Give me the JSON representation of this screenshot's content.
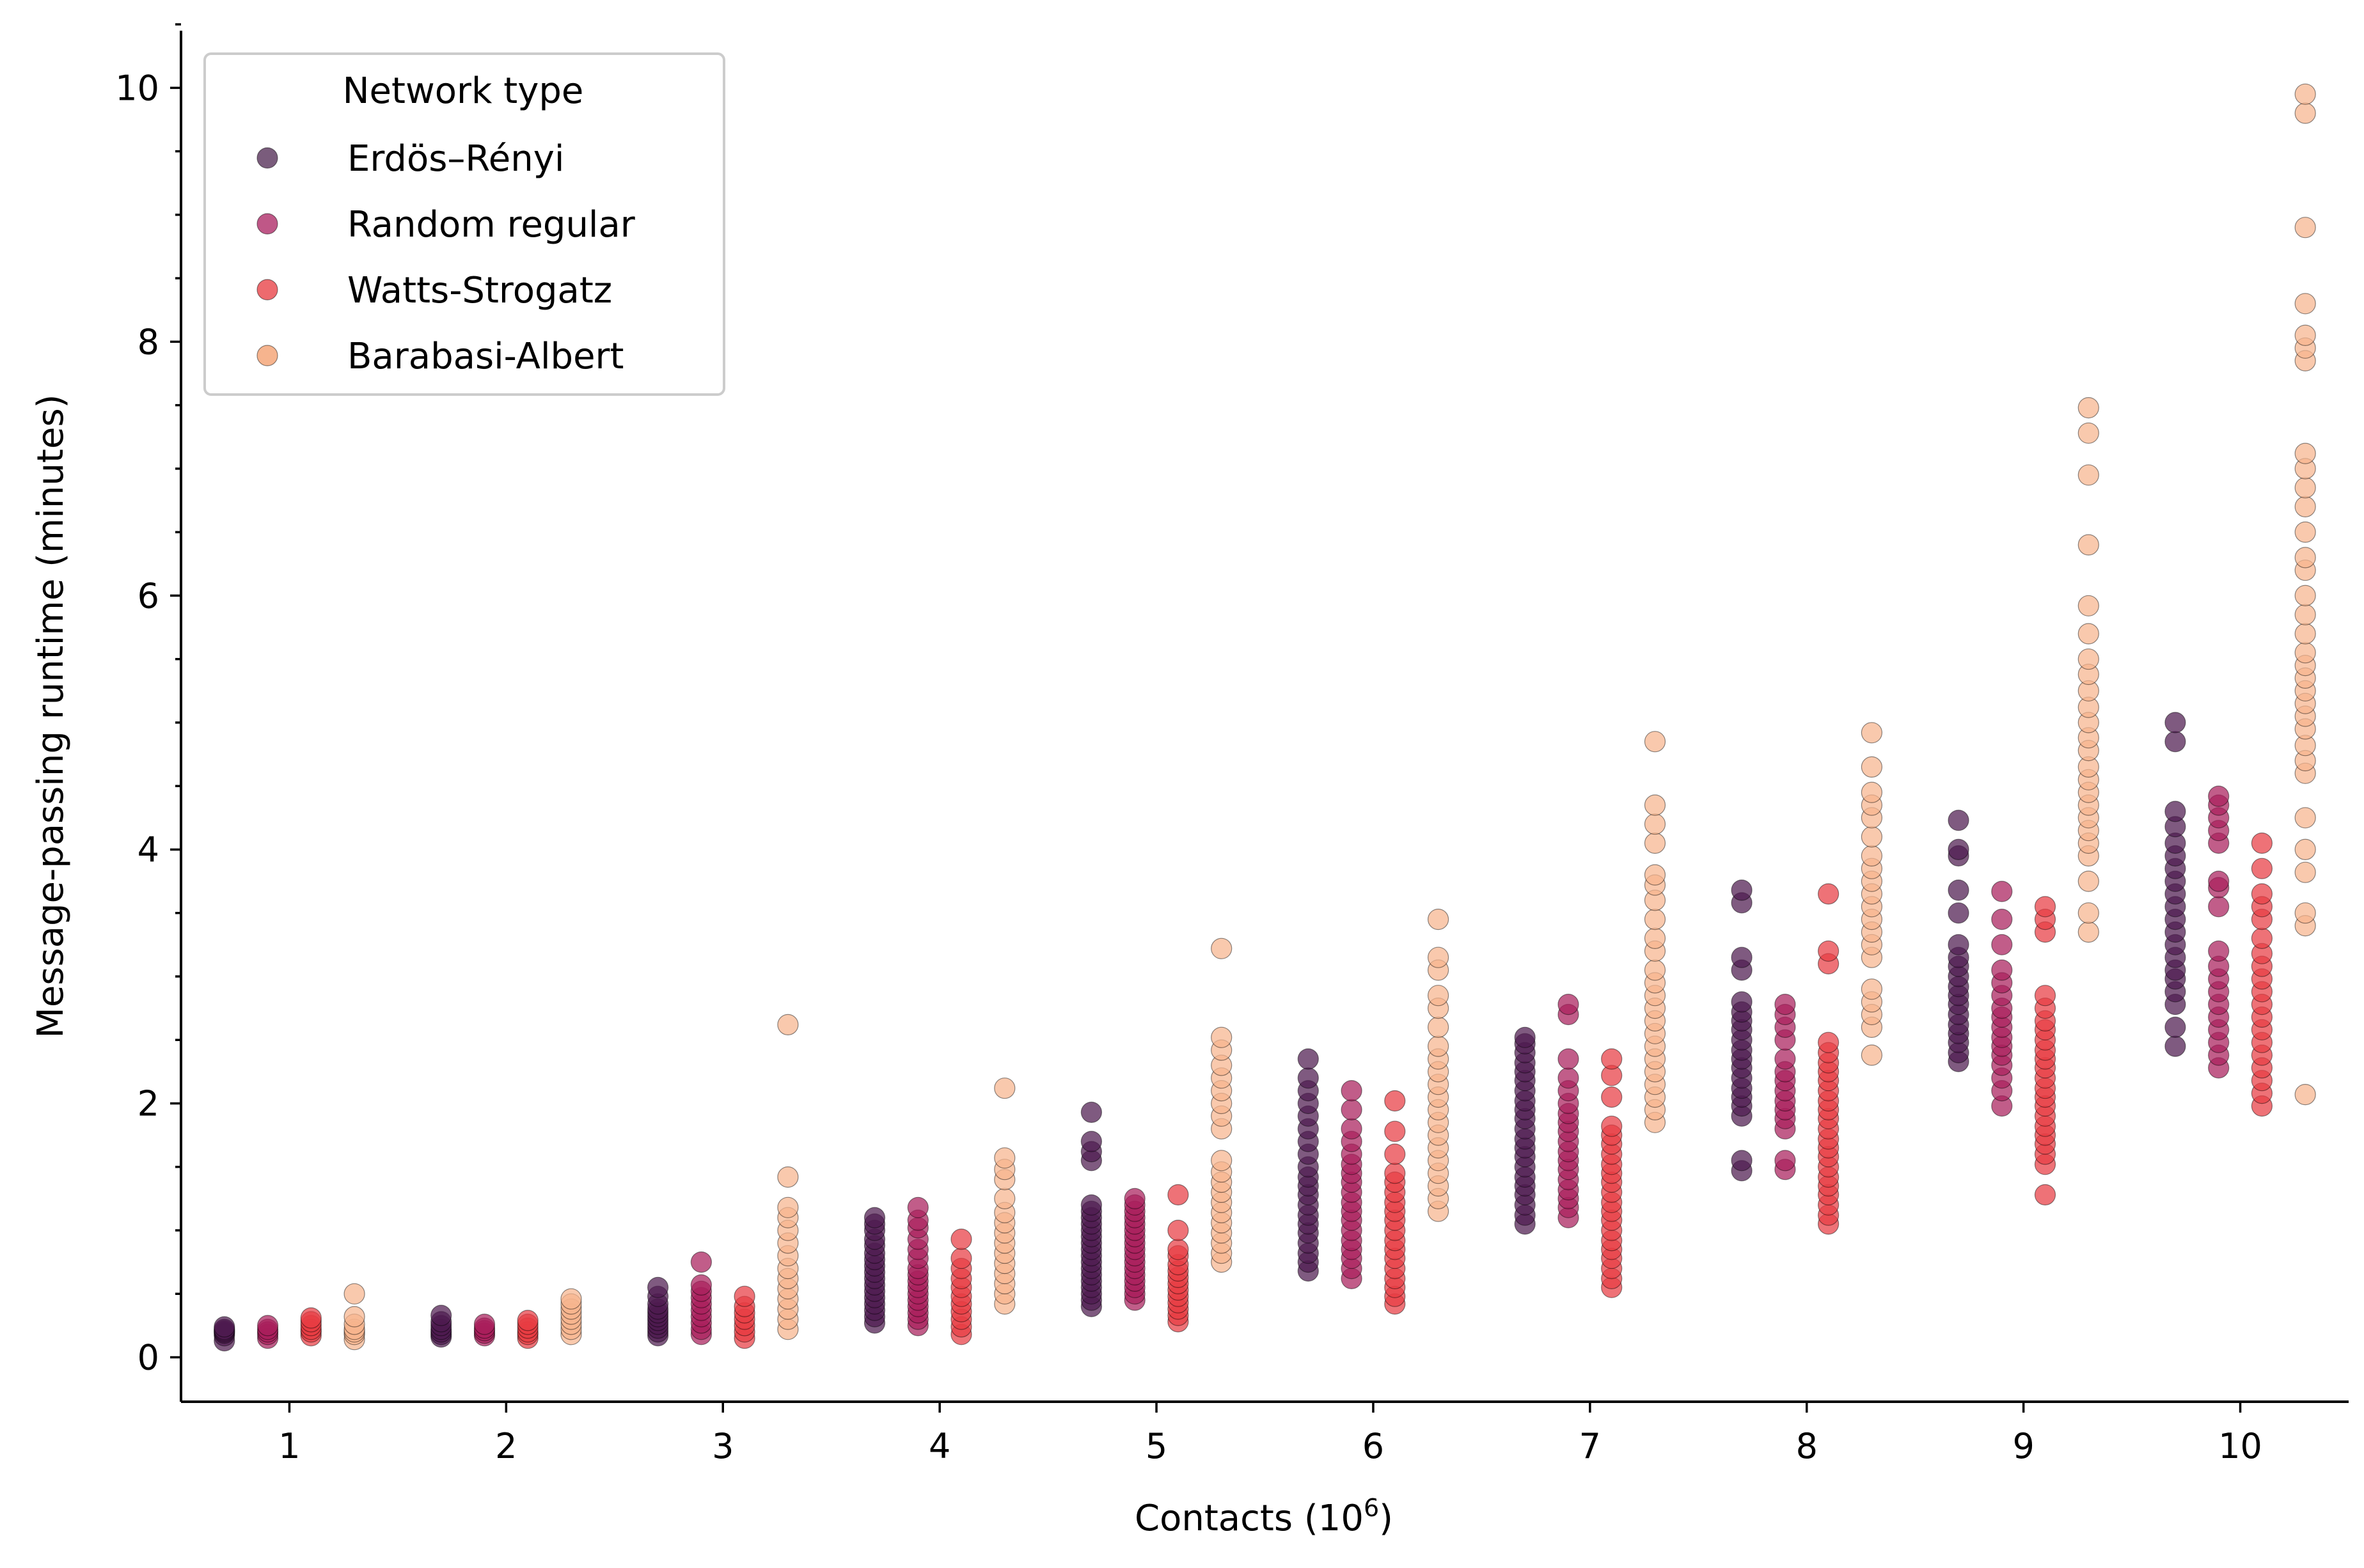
{
  "chart_data": {
    "type": "scatter",
    "xlabel": "Contacts (10",
    "xlabel_sup": "6",
    "xlabel_close": ")",
    "ylabel": "Message-passing runtime (minutes)",
    "xlim": [
      0.5,
      10.5
    ],
    "ylim": [
      -0.35,
      10.45
    ],
    "x_ticks": [
      1,
      2,
      3,
      4,
      5,
      6,
      7,
      8,
      9,
      10
    ],
    "x_tick_labels": [
      "1",
      "2",
      "3",
      "4",
      "5",
      "6",
      "7",
      "8",
      "9",
      "10"
    ],
    "y_ticks": [
      0,
      2,
      4,
      6,
      8,
      10
    ],
    "y_tick_labels": [
      "0",
      "2",
      "4",
      "6",
      "8",
      "10"
    ],
    "y_minor_ticks": [
      0.5,
      1,
      1.5,
      2.5,
      3,
      3.5,
      4.5,
      5,
      5.5,
      6.5,
      7,
      7.5,
      8.5,
      9,
      9.5,
      10.5
    ],
    "grid": false,
    "legend": {
      "title": "Network type",
      "placement": "top-left"
    },
    "series": [
      {
        "name": "Erdös–Rényi",
        "color": "#4d1a4f",
        "legend_color": "#7a5c7c",
        "x_offset": -0.3,
        "points": [
          [
            1,
            [
              0.13,
              0.17,
              0.19,
              0.2,
              0.21,
              0.22,
              0.24
            ]
          ],
          [
            2,
            [
              0.16,
              0.18,
              0.2,
              0.22,
              0.25,
              0.28,
              0.33
            ]
          ],
          [
            3,
            [
              0.17,
              0.2,
              0.23,
              0.26,
              0.29,
              0.32,
              0.35,
              0.38,
              0.42,
              0.48,
              0.55
            ]
          ],
          [
            4,
            [
              0.27,
              0.32,
              0.37,
              0.42,
              0.47,
              0.52,
              0.57,
              0.62,
              0.67,
              0.72,
              0.77,
              0.82,
              0.88,
              0.93,
              1.0,
              1.05,
              1.1
            ]
          ],
          [
            5,
            [
              0.4,
              0.45,
              0.5,
              0.55,
              0.6,
              0.65,
              0.7,
              0.75,
              0.8,
              0.85,
              0.9,
              0.95,
              1.0,
              1.05,
              1.1,
              1.15,
              1.2,
              1.55,
              1.62,
              1.7,
              1.93
            ]
          ],
          [
            6,
            [
              0.68,
              0.75,
              0.82,
              0.9,
              0.98,
              1.05,
              1.12,
              1.2,
              1.28,
              1.35,
              1.42,
              1.5,
              1.6,
              1.7,
              1.8,
              1.9,
              2.0,
              2.1,
              2.2,
              2.35
            ]
          ],
          [
            7,
            [
              1.05,
              1.12,
              1.2,
              1.28,
              1.35,
              1.42,
              1.5,
              1.58,
              1.65,
              1.72,
              1.8,
              1.88,
              1.95,
              2.02,
              2.1,
              2.18,
              2.25,
              2.32,
              2.4,
              2.47,
              2.52
            ]
          ],
          [
            8,
            [
              1.47,
              1.55,
              1.9,
              1.98,
              2.05,
              2.12,
              2.2,
              2.28,
              2.35,
              2.42,
              2.5,
              2.58,
              2.65,
              2.72,
              2.8,
              3.05,
              3.15,
              3.58,
              3.68
            ]
          ],
          [
            9,
            [
              2.33,
              2.4,
              2.48,
              2.55,
              2.62,
              2.7,
              2.78,
              2.85,
              2.92,
              3.0,
              3.08,
              3.15,
              3.25,
              3.5,
              3.68,
              3.95,
              4.0,
              4.23
            ]
          ],
          [
            10,
            [
              2.45,
              2.6,
              2.78,
              2.88,
              2.98,
              3.05,
              3.15,
              3.25,
              3.35,
              3.45,
              3.55,
              3.65,
              3.75,
              3.85,
              3.95,
              4.05,
              4.18,
              4.3,
              4.85,
              5.0
            ]
          ]
        ]
      },
      {
        "name": "Random regular",
        "color": "#a91e5c",
        "legend_color": "#bf5787",
        "x_offset": -0.1,
        "points": [
          [
            1,
            [
              0.15,
              0.18,
              0.2,
              0.22,
              0.25
            ]
          ],
          [
            2,
            [
              0.17,
              0.19,
              0.21,
              0.23,
              0.26
            ]
          ],
          [
            3,
            [
              0.18,
              0.22,
              0.27,
              0.32,
              0.37,
              0.42,
              0.47,
              0.52,
              0.57,
              0.75
            ]
          ],
          [
            4,
            [
              0.25,
              0.3,
              0.35,
              0.4,
              0.45,
              0.5,
              0.55,
              0.6,
              0.65,
              0.7,
              0.78,
              0.85,
              0.93,
              1.02,
              1.08,
              1.18
            ]
          ],
          [
            5,
            [
              0.45,
              0.5,
              0.55,
              0.6,
              0.65,
              0.7,
              0.75,
              0.8,
              0.85,
              0.9,
              0.95,
              1.0,
              1.05,
              1.1,
              1.15,
              1.2,
              1.25
            ]
          ],
          [
            6,
            [
              0.62,
              0.7,
              0.78,
              0.85,
              0.92,
              1.0,
              1.08,
              1.15,
              1.22,
              1.3,
              1.38,
              1.45,
              1.52,
              1.6,
              1.7,
              1.8,
              1.95,
              2.1
            ]
          ],
          [
            7,
            [
              1.1,
              1.18,
              1.25,
              1.32,
              1.4,
              1.48,
              1.55,
              1.62,
              1.7,
              1.78,
              1.85,
              1.92,
              2.0,
              2.1,
              2.2,
              2.35,
              2.7,
              2.78
            ]
          ],
          [
            8,
            [
              1.48,
              1.55,
              1.8,
              1.88,
              1.95,
              2.02,
              2.1,
              2.18,
              2.25,
              2.35,
              2.5,
              2.6,
              2.7,
              2.78
            ]
          ],
          [
            9,
            [
              1.98,
              2.1,
              2.2,
              2.3,
              2.38,
              2.45,
              2.52,
              2.6,
              2.68,
              2.75,
              2.85,
              2.95,
              3.05,
              3.25,
              3.45,
              3.67
            ]
          ],
          [
            10,
            [
              2.28,
              2.38,
              2.48,
              2.58,
              2.68,
              2.78,
              2.88,
              2.98,
              3.08,
              3.2,
              3.55,
              3.7,
              3.75,
              4.05,
              4.15,
              4.25,
              4.35,
              4.42
            ]
          ]
        ]
      },
      {
        "name": "Watts-Strogatz",
        "color": "#e83c43",
        "legend_color": "#ed6a6e",
        "x_offset": 0.1,
        "points": [
          [
            1,
            [
              0.17,
              0.2,
              0.22,
              0.25,
              0.28,
              0.31
            ]
          ],
          [
            2,
            [
              0.15,
              0.18,
              0.2,
              0.23,
              0.26,
              0.29
            ]
          ],
          [
            3,
            [
              0.15,
              0.2,
              0.25,
              0.3,
              0.35,
              0.4,
              0.48
            ]
          ],
          [
            4,
            [
              0.18,
              0.24,
              0.3,
              0.36,
              0.42,
              0.48,
              0.55,
              0.62,
              0.7,
              0.78,
              0.93
            ]
          ],
          [
            5,
            [
              0.28,
              0.33,
              0.38,
              0.43,
              0.48,
              0.53,
              0.58,
              0.63,
              0.68,
              0.73,
              0.8,
              0.85,
              1.0,
              1.28
            ]
          ],
          [
            6,
            [
              0.42,
              0.48,
              0.55,
              0.62,
              0.7,
              0.78,
              0.85,
              0.92,
              1.0,
              1.08,
              1.15,
              1.22,
              1.3,
              1.38,
              1.45,
              1.6,
              1.78,
              2.02
            ]
          ],
          [
            7,
            [
              0.55,
              0.62,
              0.7,
              0.78,
              0.85,
              0.92,
              1.0,
              1.08,
              1.15,
              1.22,
              1.3,
              1.38,
              1.45,
              1.52,
              1.6,
              1.68,
              1.75,
              1.82,
              2.05,
              2.22,
              2.35
            ]
          ],
          [
            8,
            [
              1.05,
              1.12,
              1.2,
              1.28,
              1.35,
              1.42,
              1.5,
              1.58,
              1.65,
              1.72,
              1.8,
              1.88,
              1.95,
              2.02,
              2.1,
              2.18,
              2.25,
              2.32,
              2.4,
              2.48,
              3.1,
              3.2,
              3.65
            ]
          ],
          [
            9,
            [
              1.28,
              1.52,
              1.6,
              1.68,
              1.75,
              1.82,
              1.9,
              1.98,
              2.05,
              2.12,
              2.2,
              2.28,
              2.35,
              2.42,
              2.5,
              2.58,
              2.65,
              2.75,
              2.85,
              3.35,
              3.45,
              3.55
            ]
          ],
          [
            10,
            [
              1.98,
              2.08,
              2.18,
              2.28,
              2.38,
              2.48,
              2.58,
              2.68,
              2.78,
              2.88,
              2.98,
              3.08,
              3.18,
              3.3,
              3.45,
              3.55,
              3.65,
              3.85,
              4.05
            ]
          ]
        ]
      },
      {
        "name": "Barabasi-Albert",
        "color": "#f6b48e",
        "legend_color": "#f6b48e",
        "x_offset": 0.3,
        "points": [
          [
            1,
            [
              0.14,
              0.18,
              0.2,
              0.22,
              0.26,
              0.32,
              0.5
            ]
          ],
          [
            2,
            [
              0.18,
              0.22,
              0.26,
              0.3,
              0.34,
              0.38,
              0.42,
              0.46
            ]
          ],
          [
            3,
            [
              0.22,
              0.3,
              0.38,
              0.46,
              0.54,
              0.62,
              0.7,
              0.8,
              0.9,
              1.0,
              1.1,
              1.18,
              1.42,
              2.62
            ]
          ],
          [
            4,
            [
              0.42,
              0.5,
              0.58,
              0.66,
              0.74,
              0.82,
              0.9,
              0.98,
              1.06,
              1.14,
              1.25,
              1.4,
              1.48,
              1.57,
              2.12
            ]
          ],
          [
            5,
            [
              0.75,
              0.82,
              0.9,
              0.98,
              1.06,
              1.14,
              1.22,
              1.3,
              1.38,
              1.46,
              1.55,
              1.8,
              1.9,
              2.0,
              2.1,
              2.2,
              2.3,
              2.42,
              2.52,
              3.22
            ]
          ],
          [
            6,
            [
              1.15,
              1.25,
              1.35,
              1.45,
              1.55,
              1.65,
              1.75,
              1.85,
              1.95,
              2.05,
              2.15,
              2.25,
              2.35,
              2.45,
              2.6,
              2.75,
              2.85,
              3.05,
              3.15,
              3.45
            ]
          ],
          [
            7,
            [
              1.85,
              1.95,
              2.05,
              2.15,
              2.25,
              2.35,
              2.45,
              2.55,
              2.65,
              2.75,
              2.85,
              2.95,
              3.05,
              3.2,
              3.3,
              3.45,
              3.6,
              3.72,
              3.8,
              4.05,
              4.2,
              4.35,
              4.85
            ]
          ],
          [
            8,
            [
              2.38,
              2.6,
              2.7,
              2.8,
              2.9,
              3.15,
              3.25,
              3.35,
              3.45,
              3.55,
              3.65,
              3.75,
              3.85,
              3.95,
              4.1,
              4.25,
              4.35,
              4.45,
              4.65,
              4.92
            ]
          ],
          [
            9,
            [
              3.35,
              3.5,
              3.75,
              3.95,
              4.05,
              4.15,
              4.25,
              4.35,
              4.45,
              4.55,
              4.65,
              4.78,
              4.88,
              5.0,
              5.12,
              5.25,
              5.38,
              5.5,
              5.7,
              5.92,
              6.4,
              6.95,
              7.28,
              7.48
            ]
          ],
          [
            10,
            [
              2.07,
              3.4,
              3.5,
              3.82,
              4.0,
              4.25,
              4.6,
              4.7,
              4.82,
              4.95,
              5.05,
              5.15,
              5.25,
              5.35,
              5.45,
              5.55,
              5.7,
              5.85,
              6.0,
              6.2,
              6.3,
              6.5,
              6.7,
              6.85,
              7.0,
              7.12,
              7.85,
              7.95,
              8.05,
              8.3,
              8.9,
              9.8,
              9.95
            ]
          ]
        ]
      }
    ]
  }
}
